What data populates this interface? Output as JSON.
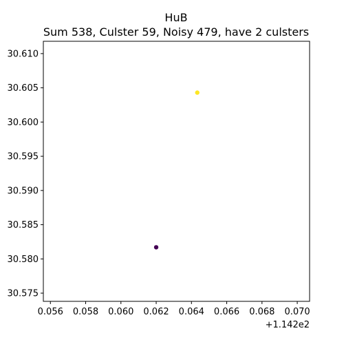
{
  "chart_data": {
    "type": "scatter",
    "title": "HuB",
    "subtitle": "Sum 538, Culster 59, Noisy 479, have 2 culsters",
    "xlabel": "",
    "ylabel": "",
    "x_offset_label": "+1.142e2",
    "xlim": [
      0.0556,
      0.0707
    ],
    "ylim": [
      30.5738,
      30.6118
    ],
    "x_ticks": [
      {
        "value": 0.056,
        "label": "0.056"
      },
      {
        "value": 0.058,
        "label": "0.058"
      },
      {
        "value": 0.06,
        "label": "0.060"
      },
      {
        "value": 0.062,
        "label": "0.062"
      },
      {
        "value": 0.064,
        "label": "0.064"
      },
      {
        "value": 0.066,
        "label": "0.066"
      },
      {
        "value": 0.068,
        "label": "0.068"
      },
      {
        "value": 0.07,
        "label": "0.070"
      }
    ],
    "y_ticks": [
      {
        "value": 30.575,
        "label": "30.575"
      },
      {
        "value": 30.58,
        "label": "30.580"
      },
      {
        "value": 30.585,
        "label": "30.585"
      },
      {
        "value": 30.59,
        "label": "30.590"
      },
      {
        "value": 30.595,
        "label": "30.595"
      },
      {
        "value": 30.6,
        "label": "30.600"
      },
      {
        "value": 30.605,
        "label": "30.605"
      },
      {
        "value": 30.61,
        "label": "30.610"
      }
    ],
    "grid": false,
    "series": [
      {
        "color": "#440154",
        "points": [
          {
            "x": 0.062,
            "y": 30.5817
          }
        ]
      },
      {
        "color": "#fde725",
        "points": [
          {
            "x": 0.06433,
            "y": 30.6043
          }
        ]
      }
    ]
  }
}
